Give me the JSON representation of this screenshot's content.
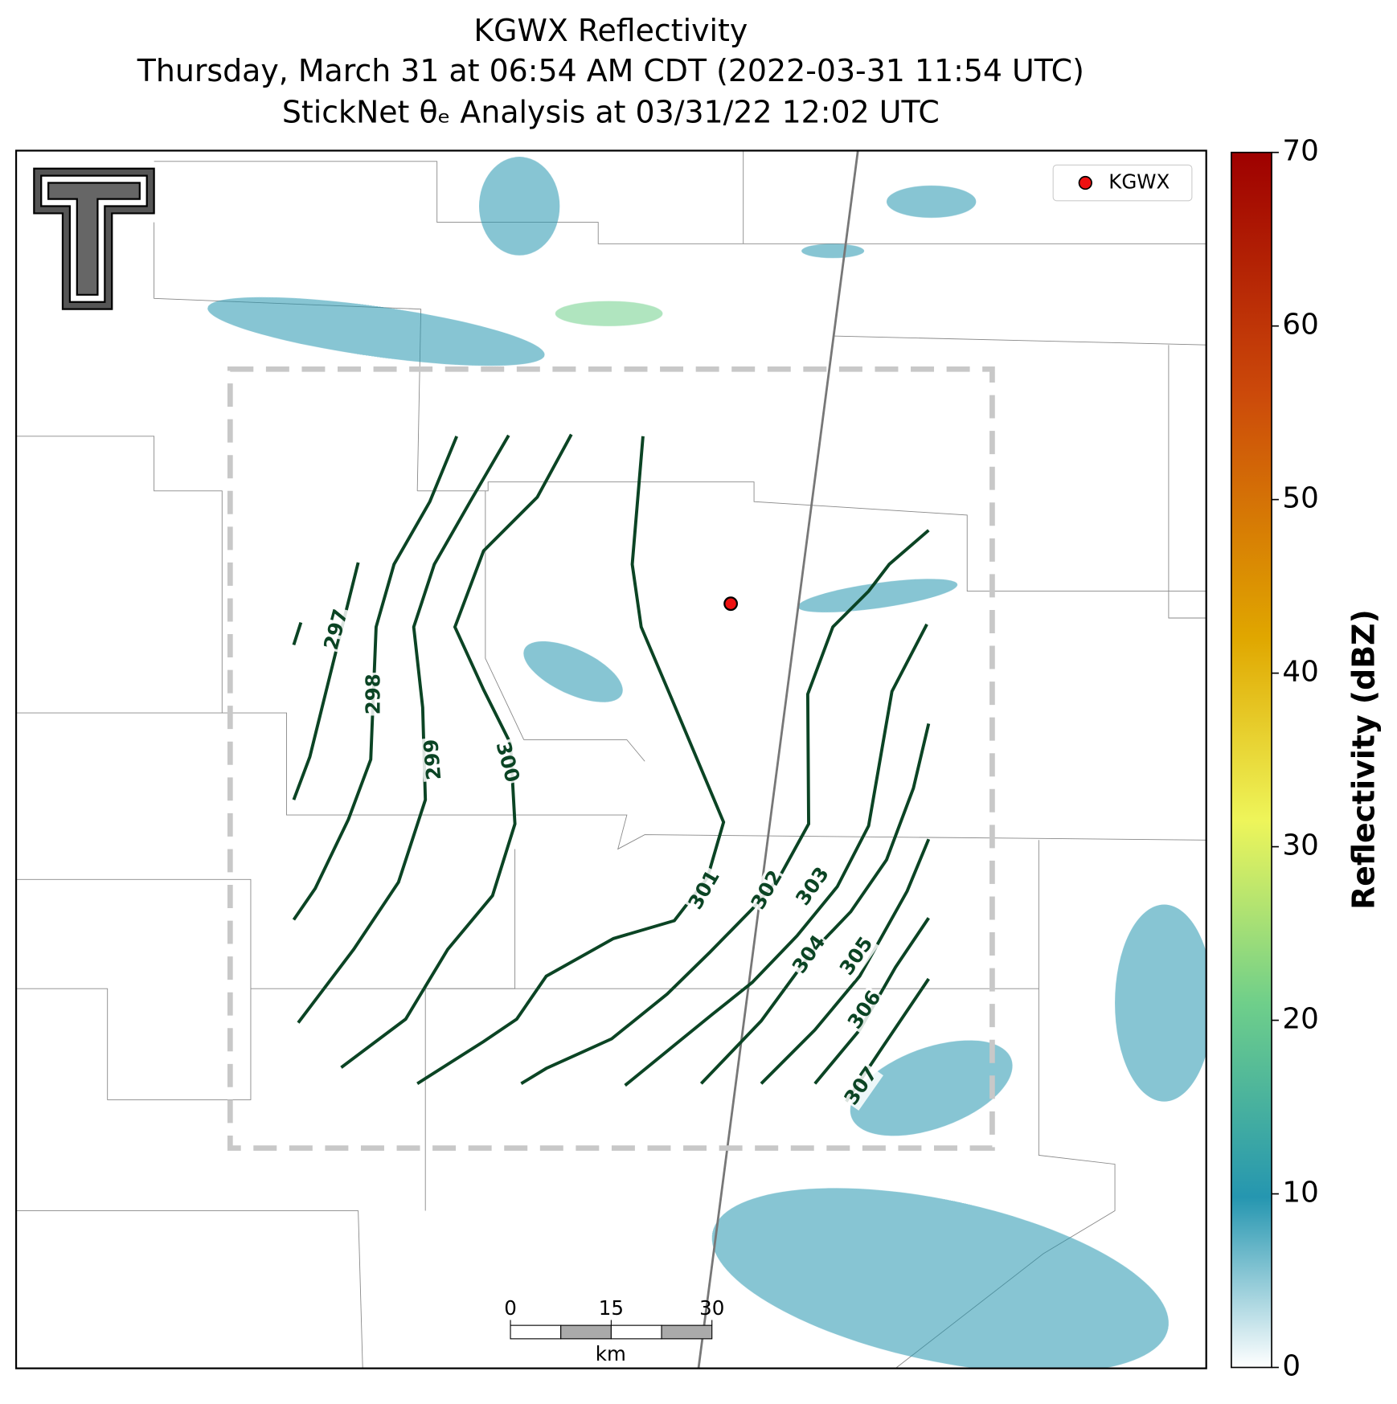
{
  "title": [
    "KGWX Reflectivity",
    "Thursday, March 31 at 06:54 AM CDT (2022-03-31 11:54 UTC)",
    "StickNet θₑ Analysis at 03/31/22 12:02 UTC"
  ],
  "legend": "KGWX",
  "contours": {
    "color": "#0b4424",
    "levels": [
      297,
      298,
      299,
      300,
      301,
      302,
      303,
      304,
      305,
      306,
      307
    ]
  },
  "colorbar": {
    "label": "Reflectivity (dBZ)",
    "lim": [
      0,
      70
    ],
    "ticks": [
      0,
      10,
      20,
      30,
      40,
      50,
      60,
      70
    ]
  },
  "scalebar": {
    "ticks": [
      0,
      15,
      30
    ],
    "unit": "km"
  }
}
